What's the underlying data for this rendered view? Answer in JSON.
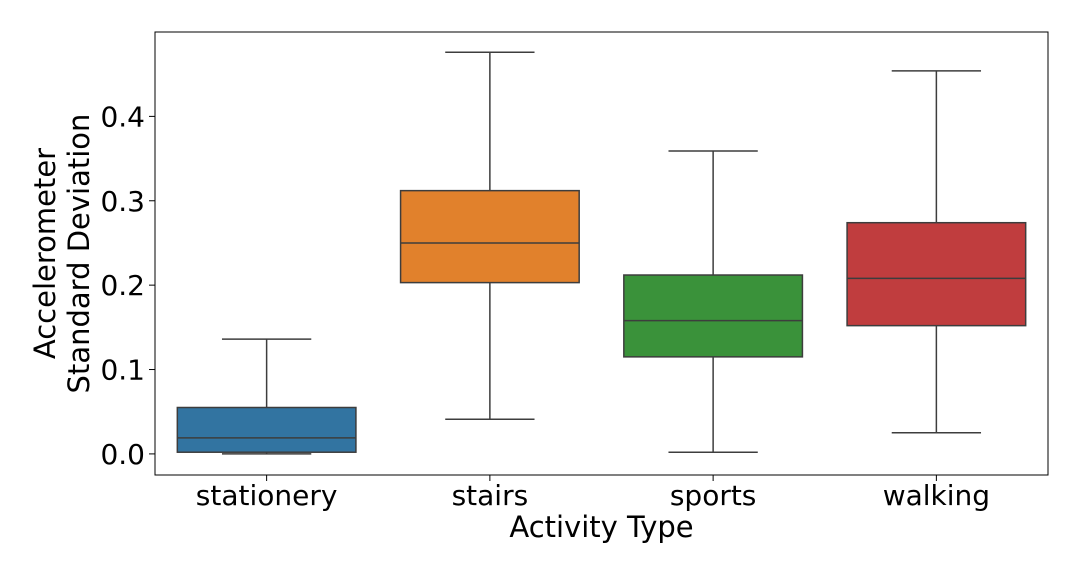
{
  "chart_data": {
    "type": "box",
    "title": "",
    "xlabel": "Activity Type",
    "ylabel_lines": [
      "Accelerometer",
      "Standard Deviation"
    ],
    "ylim": [
      -0.025,
      0.5
    ],
    "yticks": [
      0.0,
      0.1,
      0.2,
      0.3,
      0.4
    ],
    "ytick_labels": [
      "0.0",
      "0.1",
      "0.2",
      "0.3",
      "0.4"
    ],
    "grid": false,
    "legend": "none",
    "categories": [
      "stationery",
      "stairs",
      "sports",
      "walking"
    ],
    "boxes": [
      {
        "category": "stationery",
        "color": "#3274A1",
        "whisker_low": 0.0,
        "q1": 0.002,
        "median": 0.019,
        "q3": 0.055,
        "whisker_high": 0.136
      },
      {
        "category": "stairs",
        "color": "#E1812C",
        "whisker_low": 0.041,
        "q1": 0.203,
        "median": 0.25,
        "q3": 0.312,
        "whisker_high": 0.476
      },
      {
        "category": "sports",
        "color": "#3A923A",
        "whisker_low": 0.002,
        "q1": 0.115,
        "median": 0.158,
        "q3": 0.212,
        "whisker_high": 0.359
      },
      {
        "category": "walking",
        "color": "#C03D3E",
        "whisker_low": 0.025,
        "q1": 0.152,
        "median": 0.208,
        "q3": 0.274,
        "whisker_high": 0.454
      }
    ]
  }
}
